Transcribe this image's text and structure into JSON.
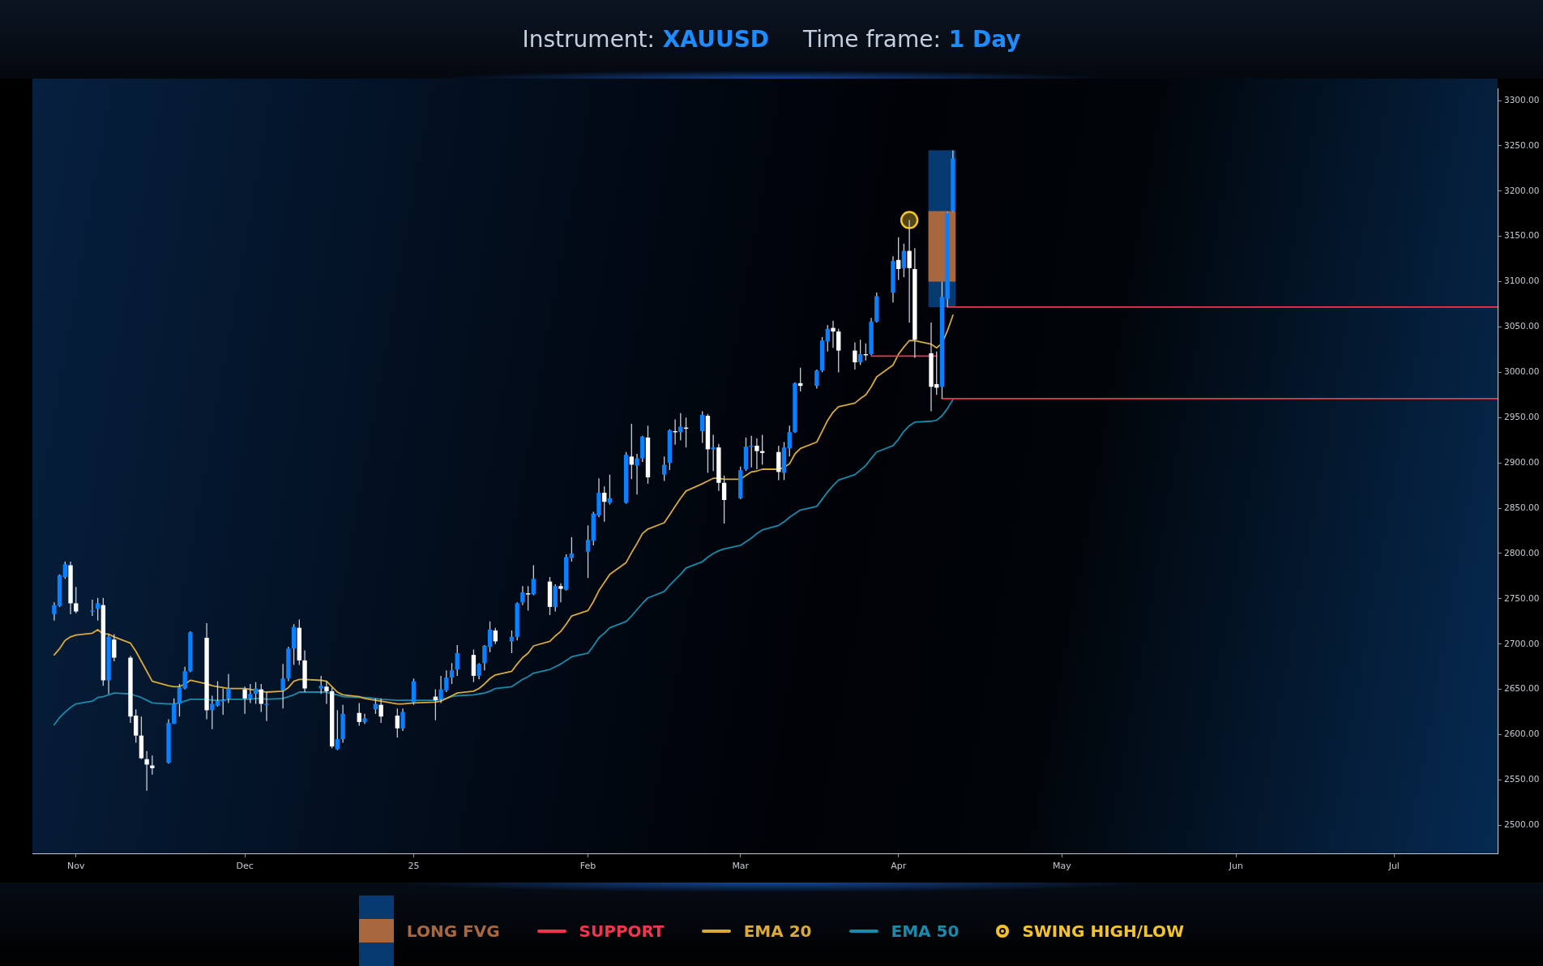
{
  "chart_data": {
    "type": "candlestick",
    "title": "Instrument: XAUUSD",
    "subtitle": "Time frame: 1 Day",
    "x": [
      "2024-10-28",
      "2024-10-29",
      "2024-10-30",
      "2024-10-31",
      "2024-11-01",
      "2024-11-04",
      "2024-11-05",
      "2024-11-06",
      "2024-11-07",
      "2024-11-08",
      "2024-11-11",
      "2024-11-12",
      "2024-11-13",
      "2024-11-14",
      "2024-11-15",
      "2024-11-18",
      "2024-11-19",
      "2024-11-20",
      "2024-11-21",
      "2024-11-22",
      "2024-11-25",
      "2024-11-26",
      "2024-11-27",
      "2024-11-28",
      "2024-11-29",
      "2024-12-02",
      "2024-12-03",
      "2024-12-04",
      "2024-12-05",
      "2024-12-06",
      "2024-12-09",
      "2024-12-10",
      "2024-12-11",
      "2024-12-12",
      "2024-12-13",
      "2024-12-16",
      "2024-12-17",
      "2024-12-18",
      "2024-12-19",
      "2024-12-20",
      "2024-12-23",
      "2024-12-24",
      "2024-12-26",
      "2024-12-27",
      "2024-12-30",
      "2024-12-31",
      "2025-01-02",
      "2025-01-06",
      "2025-01-07",
      "2025-01-08",
      "2025-01-09",
      "2025-01-10",
      "2025-01-13",
      "2025-01-14",
      "2025-01-15",
      "2025-01-16",
      "2025-01-17",
      "2025-01-20",
      "2025-01-21",
      "2025-01-22",
      "2025-01-23",
      "2025-01-24",
      "2025-01-27",
      "2025-01-28",
      "2025-01-29",
      "2025-01-30",
      "2025-01-31",
      "2025-02-03",
      "2025-02-04",
      "2025-02-05",
      "2025-02-06",
      "2025-02-07",
      "2025-02-10",
      "2025-02-11",
      "2025-02-12",
      "2025-02-13",
      "2025-02-14",
      "2025-02-17",
      "2025-02-18",
      "2025-02-19",
      "2025-02-20",
      "2025-02-21",
      "2025-02-24",
      "2025-02-25",
      "2025-02-26",
      "2025-02-27",
      "2025-02-28",
      "2025-03-03",
      "2025-03-04",
      "2025-03-05",
      "2025-03-06",
      "2025-03-07",
      "2025-03-10",
      "2025-03-11",
      "2025-03-12",
      "2025-03-13",
      "2025-03-14",
      "2025-03-17",
      "2025-03-18",
      "2025-03-19",
      "2025-03-20",
      "2025-03-21",
      "2025-03-24",
      "2025-03-25",
      "2025-03-26",
      "2025-03-27",
      "2025-03-28",
      "2025-03-31",
      "2025-04-01",
      "2025-04-02",
      "2025-04-03",
      "2025-04-04",
      "2025-04-07",
      "2025-04-08",
      "2025-04-09",
      "2025-04-10",
      "2025-04-11"
    ],
    "ohlc": [
      [
        2733,
        2746,
        2726,
        2743
      ],
      [
        2742,
        2777,
        2741,
        2776
      ],
      [
        2774,
        2791,
        2772,
        2788
      ],
      [
        2787,
        2791,
        2733,
        2745
      ],
      [
        2745,
        2763,
        2734,
        2736
      ],
      [
        2736,
        2749,
        2731,
        2737
      ],
      [
        2739,
        2751,
        2726,
        2745
      ],
      [
        2743,
        2751,
        2654,
        2660
      ],
      [
        2660,
        2711,
        2645,
        2708
      ],
      [
        2705,
        2711,
        2681,
        2685
      ],
      [
        2685,
        2687,
        2613,
        2620
      ],
      [
        2621,
        2628,
        2591,
        2599
      ],
      [
        2599,
        2620,
        2573,
        2574
      ],
      [
        2573,
        2582,
        2538,
        2567
      ],
      [
        2566,
        2577,
        2556,
        2563
      ],
      [
        2569,
        2617,
        2568,
        2613
      ],
      [
        2612,
        2640,
        2612,
        2634
      ],
      [
        2634,
        2656,
        2620,
        2652
      ],
      [
        2651,
        2675,
        2650,
        2670
      ],
      [
        2670,
        2714,
        2669,
        2713
      ],
      [
        2707,
        2723,
        2617,
        2627
      ],
      [
        2627,
        2643,
        2606,
        2634
      ],
      [
        2632,
        2659,
        2631,
        2637
      ],
      [
        2637,
        2651,
        2622,
        2638
      ],
      [
        2640,
        2667,
        2635,
        2651
      ],
      [
        2650,
        2653,
        2623,
        2640
      ],
      [
        2640,
        2656,
        2635,
        2645
      ],
      [
        2645,
        2658,
        2634,
        2651
      ],
      [
        2650,
        2656,
        2625,
        2634
      ],
      [
        2633,
        2647,
        2615,
        2634
      ],
      [
        2649,
        2678,
        2629,
        2662
      ],
      [
        2662,
        2697,
        2659,
        2695
      ],
      [
        2695,
        2722,
        2677,
        2719
      ],
      [
        2718,
        2727,
        2677,
        2682
      ],
      [
        2682,
        2693,
        2647,
        2651
      ],
      [
        2651,
        2665,
        2645,
        2654
      ],
      [
        2653,
        2659,
        2634,
        2648
      ],
      [
        2648,
        2652,
        2585,
        2587
      ],
      [
        2584,
        2627,
        2583,
        2595
      ],
      [
        2595,
        2633,
        2591,
        2623
      ],
      [
        2624,
        2635,
        2610,
        2614
      ],
      [
        2614,
        2623,
        2612,
        2618
      ],
      [
        2628,
        2640,
        2623,
        2634
      ],
      [
        2633,
        2640,
        2613,
        2620
      ],
      [
        2621,
        2629,
        2597,
        2607
      ],
      [
        2607,
        2629,
        2604,
        2625
      ],
      [
        2636,
        2662,
        2633,
        2659
      ],
      [
        2642,
        2650,
        2616,
        2638
      ],
      [
        2639,
        2665,
        2635,
        2650
      ],
      [
        2649,
        2671,
        2647,
        2663
      ],
      [
        2663,
        2679,
        2656,
        2671
      ],
      [
        2672,
        2699,
        2665,
        2690
      ],
      [
        2688,
        2694,
        2658,
        2665
      ],
      [
        2665,
        2679,
        2661,
        2678
      ],
      [
        2679,
        2699,
        2671,
        2698
      ],
      [
        2697,
        2725,
        2691,
        2716
      ],
      [
        2715,
        2718,
        2700,
        2703
      ],
      [
        2703,
        2715,
        2690,
        2708
      ],
      [
        2708,
        2746,
        2704,
        2745
      ],
      [
        2746,
        2764,
        2743,
        2757
      ],
      [
        2756,
        2764,
        2737,
        2755
      ],
      [
        2755,
        2787,
        2754,
        2772
      ],
      [
        2769,
        2774,
        2732,
        2741
      ],
      [
        2741,
        2766,
        2736,
        2764
      ],
      [
        2764,
        2767,
        2746,
        2761
      ],
      [
        2760,
        2799,
        2759,
        2796
      ],
      [
        2795,
        2818,
        2791,
        2800
      ],
      [
        2802,
        2831,
        2773,
        2815
      ],
      [
        2814,
        2846,
        2809,
        2844
      ],
      [
        2842,
        2883,
        2840,
        2867
      ],
      [
        2867,
        2874,
        2835,
        2857
      ],
      [
        2856,
        2887,
        2854,
        2861
      ],
      [
        2856,
        2912,
        2855,
        2909
      ],
      [
        2907,
        2943,
        2882,
        2898
      ],
      [
        2897,
        2910,
        2865,
        2905
      ],
      [
        2905,
        2930,
        2901,
        2929
      ],
      [
        2928,
        2941,
        2877,
        2884
      ],
      [
        2887,
        2907,
        2880,
        2898
      ],
      [
        2900,
        2937,
        2892,
        2936
      ],
      [
        2935,
        2948,
        2920,
        2934
      ],
      [
        2934,
        2955,
        2925,
        2940
      ],
      [
        2939,
        2950,
        2917,
        2938
      ],
      [
        2935,
        2957,
        2922,
        2953
      ],
      [
        2952,
        2954,
        2889,
        2915
      ],
      [
        2915,
        2931,
        2891,
        2917
      ],
      [
        2917,
        2921,
        2869,
        2878
      ],
      [
        2878,
        2886,
        2833,
        2859
      ],
      [
        2861,
        2896,
        2860,
        2892
      ],
      [
        2893,
        2928,
        2891,
        2918
      ],
      [
        2918,
        2930,
        2895,
        2919
      ],
      [
        2919,
        2927,
        2893,
        2913
      ],
      [
        2913,
        2931,
        2898,
        2911
      ],
      [
        2912,
        2919,
        2881,
        2890
      ],
      [
        2889,
        2923,
        2881,
        2917
      ],
      [
        2916,
        2941,
        2907,
        2934
      ],
      [
        2934,
        2989,
        2933,
        2988
      ],
      [
        2988,
        3005,
        2979,
        2985
      ],
      [
        2985,
        3003,
        2982,
        3002
      ],
      [
        3002,
        3039,
        3000,
        3035
      ],
      [
        3034,
        3052,
        3023,
        3048
      ],
      [
        3049,
        3057,
        3027,
        3045
      ],
      [
        3045,
        3048,
        3000,
        3024
      ],
      [
        3024,
        3033,
        3003,
        3011
      ],
      [
        3011,
        3036,
        3008,
        3020
      ],
      [
        3020,
        3032,
        3013,
        3019
      ],
      [
        3020,
        3060,
        3019,
        3056
      ],
      [
        3056,
        3088,
        3055,
        3084
      ],
      [
        3088,
        3128,
        3077,
        3123
      ],
      [
        3124,
        3149,
        3102,
        3114
      ],
      [
        3115,
        3142,
        3105,
        3134
      ],
      [
        3134,
        3168,
        3055,
        3115
      ],
      [
        3114,
        3137,
        3016,
        3036
      ],
      [
        3021,
        3055,
        2957,
        2984
      ],
      [
        2987,
        3023,
        2975,
        2983
      ],
      [
        2984,
        3100,
        2971,
        3083
      ],
      [
        3081,
        3177,
        3072,
        3176
      ],
      [
        3178,
        3245,
        3177,
        3236
      ]
    ],
    "colors": [
      "#0a80ff",
      "#0a80ff",
      "#0a80ff",
      "#ffffff",
      "#ffffff",
      "#0a80ff",
      "#0a80ff",
      "#ffffff",
      "#0a80ff",
      "#ffffff",
      "#ffffff",
      "#ffffff",
      "#ffffff",
      "#ffffff",
      "#ffffff",
      "#0a80ff",
      "#0a80ff",
      "#0a80ff",
      "#0a80ff",
      "#0a80ff",
      "#ffffff",
      "#0a80ff",
      "#0a80ff",
      "#0a80ff",
      "#0a80ff",
      "#ffffff",
      "#0a80ff",
      "#0a80ff",
      "#ffffff",
      "#0a80ff",
      "#0a80ff",
      "#0a80ff",
      "#0a80ff",
      "#ffffff",
      "#ffffff",
      "#0a80ff",
      "#ffffff",
      "#ffffff",
      "#0a80ff",
      "#0a80ff",
      "#ffffff",
      "#0a80ff",
      "#0a80ff",
      "#ffffff",
      "#ffffff",
      "#0a80ff",
      "#0a80ff",
      "#ffffff",
      "#0a80ff",
      "#0a80ff",
      "#0a80ff",
      "#0a80ff",
      "#ffffff",
      "#0a80ff",
      "#0a80ff",
      "#0a80ff",
      "#ffffff",
      "#0a80ff",
      "#0a80ff",
      "#0a80ff",
      "#ffffff",
      "#0a80ff",
      "#ffffff",
      "#0a80ff",
      "#ffffff",
      "#0a80ff",
      "#0a80ff",
      "#0a80ff",
      "#0a80ff",
      "#0a80ff",
      "#ffffff",
      "#0a80ff",
      "#0a80ff",
      "#ffffff",
      "#0a80ff",
      "#0a80ff",
      "#ffffff",
      "#0a80ff",
      "#0a80ff",
      "#ffffff",
      "#0a80ff",
      "#ffffff",
      "#0a80ff",
      "#ffffff",
      "#0a80ff",
      "#ffffff",
      "#ffffff",
      "#0a80ff",
      "#0a80ff",
      "#0a80ff",
      "#ffffff",
      "#ffffff",
      "#ffffff",
      "#0a80ff",
      "#0a80ff",
      "#0a80ff",
      "#ffffff",
      "#0a80ff",
      "#0a80ff",
      "#0a80ff",
      "#ffffff",
      "#ffffff",
      "#ffffff",
      "#0a80ff",
      "#ffffff",
      "#0a80ff",
      "#0a80ff",
      "#0a80ff",
      "#ffffff",
      "#0a80ff",
      "#ffffff",
      "#ffffff",
      "#ffffff",
      "#ffffff",
      "#0a80ff",
      "#0a80ff",
      "#0a80ff"
    ],
    "series": [
      {
        "name": "LONG FVG",
        "type": "bar",
        "x": [
          "2025-04-09",
          "2025-04-09"
        ],
        "base": [
          3072,
          3100
        ],
        "values": [
          173,
          78
        ],
        "colors": [
          "#083a72",
          "#a8673f"
        ]
      },
      {
        "name": "SUPPORT",
        "type": "line",
        "color": "#f0364f",
        "x": [
          "2025-03-27",
          "2025-04-08"
        ],
        "values": [
          3018,
          3018
        ]
      },
      {
        "type": "line",
        "color": "#f0364f",
        "x": [
          "2025-04-10",
          "2025-07-20"
        ],
        "values": [
          3072,
          3072
        ]
      },
      {
        "type": "line",
        "color": "#f0364f",
        "x": [
          "2025-04-09",
          "2025-07-20"
        ],
        "values": [
          2971,
          2971
        ]
      },
      {
        "name": "EMA 20",
        "type": "line",
        "color": "#d9aa3a",
        "values": [
          2688,
          2695,
          2704,
          2708,
          2710,
          2712,
          2716,
          2711,
          2711,
          2708,
          2701,
          2692,
          2681,
          2670,
          2659,
          2654,
          2653,
          2653,
          2656,
          2660,
          2656,
          2654,
          2653,
          2652,
          2651,
          2651,
          2650,
          2649,
          2648,
          2647,
          2648,
          2652,
          2659,
          2661,
          2661,
          2660,
          2659,
          2653,
          2647,
          2644,
          2642,
          2640,
          2638,
          2637,
          2634,
          2634,
          2635,
          2636,
          2637,
          2640,
          2643,
          2646,
          2648,
          2651,
          2656,
          2662,
          2666,
          2670,
          2678,
          2685,
          2690,
          2698,
          2703,
          2709,
          2714,
          2722,
          2731,
          2737,
          2747,
          2759,
          2768,
          2777,
          2790,
          2801,
          2811,
          2822,
          2827,
          2834,
          2843,
          2852,
          2861,
          2869,
          2877,
          2880,
          2883,
          2883,
          2882,
          2882,
          2886,
          2890,
          2891,
          2893,
          2893,
          2895,
          2899,
          2910,
          2916,
          2923,
          2935,
          2947,
          2956,
          2962,
          2966,
          2971,
          2975,
          2984,
          2995,
          3008,
          3020,
          3028,
          3035,
          3035,
          3031,
          3027,
          3032,
          3046,
          3063
        ]
      },
      {
        "name": "EMA 50",
        "type": "line",
        "color": "#1a8aab",
        "values": [
          2611,
          2619,
          2625,
          2630,
          2634,
          2637,
          2641,
          2642,
          2644,
          2646,
          2645,
          2643,
          2641,
          2638,
          2635,
          2634,
          2634,
          2635,
          2637,
          2639,
          2639,
          2638,
          2638,
          2638,
          2639,
          2639,
          2639,
          2640,
          2640,
          2639,
          2640,
          2642,
          2644,
          2647,
          2647,
          2647,
          2647,
          2645,
          2644,
          2642,
          2641,
          2641,
          2640,
          2639,
          2638,
          2638,
          2638,
          2638,
          2639,
          2640,
          2642,
          2643,
          2644,
          2645,
          2646,
          2648,
          2651,
          2653,
          2657,
          2661,
          2664,
          2668,
          2672,
          2675,
          2678,
          2682,
          2686,
          2690,
          2698,
          2707,
          2712,
          2718,
          2725,
          2731,
          2738,
          2745,
          2751,
          2758,
          2765,
          2771,
          2777,
          2784,
          2791,
          2796,
          2800,
          2803,
          2805,
          2809,
          2813,
          2817,
          2822,
          2826,
          2831,
          2835,
          2840,
          2844,
          2848,
          2852,
          2860,
          2868,
          2875,
          2881,
          2887,
          2892,
          2897,
          2905,
          2912,
          2919,
          2926,
          2935,
          2941,
          2945,
          2946,
          2947,
          2952,
          2960,
          2970
        ]
      },
      {
        "name": "SWING HIGH/LOW",
        "type": "scatter",
        "color": "#f3c32b",
        "marker": "circle",
        "x": [
          "2025-04-03"
        ],
        "values": [
          3168
        ]
      }
    ],
    "xlim": [
      "2024-10-24",
      "2025-07-20"
    ],
    "xticks": [
      {
        "value": "2024-11-01",
        "label": "Nov"
      },
      {
        "value": "2024-12-02",
        "label": "Dec"
      },
      {
        "value": "2025-01-02",
        "label": "25"
      },
      {
        "value": "2025-02-03",
        "label": "Feb"
      },
      {
        "value": "2025-03-03",
        "label": "Mar"
      },
      {
        "value": "2025-04-01",
        "label": "Apr"
      },
      {
        "value": "2025-05-01",
        "label": "May"
      },
      {
        "value": "2025-06-02",
        "label": "Jun"
      },
      {
        "value": "2025-07-01",
        "label": "Jul"
      }
    ],
    "ylim": [
      2469,
      3313
    ],
    "yticks": [
      {
        "value": 2500,
        "label": "2500.00"
      },
      {
        "value": 2550,
        "label": "2550.00"
      },
      {
        "value": 2600,
        "label": "2600.00"
      },
      {
        "value": 2650,
        "label": "2650.00"
      },
      {
        "value": 2700,
        "label": "2700.00"
      },
      {
        "value": 2750,
        "label": "2750.00"
      },
      {
        "value": 2800,
        "label": "2800.00"
      },
      {
        "value": 2850,
        "label": "2850.00"
      },
      {
        "value": 2900,
        "label": "2900.00"
      },
      {
        "value": 2950,
        "label": "2950.00"
      },
      {
        "value": 3000,
        "label": "3000.00"
      },
      {
        "value": 3050,
        "label": "3050.00"
      },
      {
        "value": 3100,
        "label": "3100.00"
      },
      {
        "value": 3150,
        "label": "3150.00"
      },
      {
        "value": 3200,
        "label": "3200.00"
      },
      {
        "value": 3250,
        "label": "3250.00"
      },
      {
        "value": 3300,
        "label": "3300.00"
      }
    ],
    "legend": "bottom"
  }
}
